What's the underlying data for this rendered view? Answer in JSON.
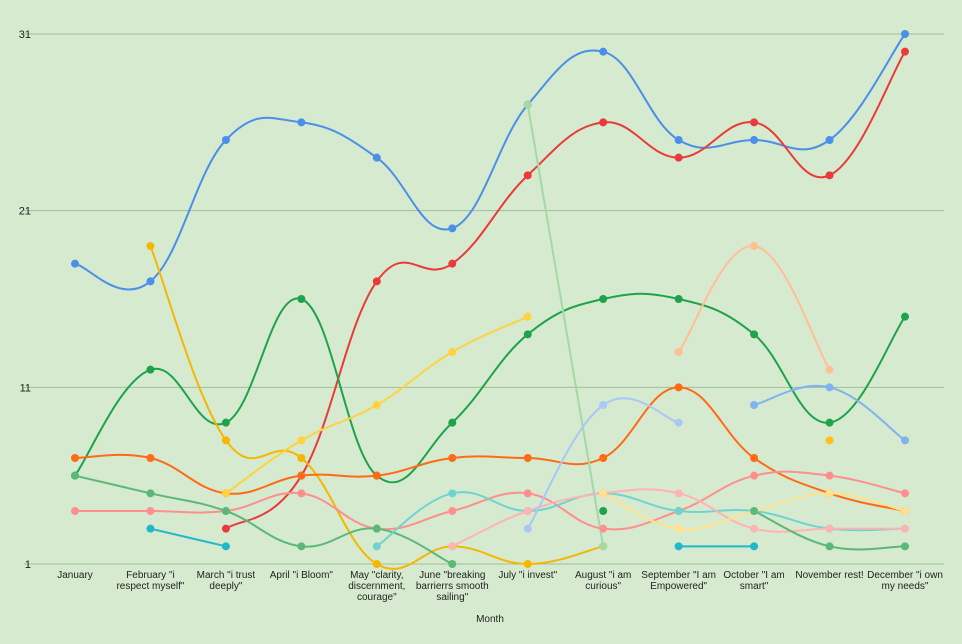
{
  "chart_data": {
    "type": "line",
    "title": "",
    "xlabel": "Month",
    "ylabel": "",
    "ylim": [
      1,
      31
    ],
    "yticks": [
      1,
      11,
      21,
      31
    ],
    "grid": true,
    "legend": "none",
    "categories": [
      "January",
      "February \"i respect myself\"",
      "March \"i trust deeply\"",
      "April \"i Bloom\"",
      "May \"clarity, discernment, courage\"",
      "June \"breaking barrierrs smooth sailing\"",
      "July \"i invest\"",
      "August \"i am curious\"",
      "September \"I am Empowered\"",
      "October \"I am smart\"",
      "November rest!",
      "December \"i own my needs\""
    ],
    "series": [
      {
        "color": "#4a8fe8",
        "values": [
          18,
          17,
          25,
          26,
          24,
          20,
          27,
          30,
          25,
          25,
          25,
          31
        ]
      },
      {
        "color": "#ea3a3a",
        "values": [
          null,
          null,
          3,
          6,
          17,
          18,
          23,
          26,
          24,
          26,
          23,
          30
        ]
      },
      {
        "color": "#1fa34a",
        "values": [
          6,
          12,
          9,
          16,
          6,
          9,
          14,
          16,
          16,
          14,
          9,
          15
        ]
      },
      {
        "color": "#f5b700",
        "values": [
          null,
          19,
          8,
          7,
          1,
          2,
          1,
          2,
          null,
          null,
          8,
          null
        ]
      },
      {
        "color": "#ff6a14",
        "values": [
          7,
          7,
          5,
          6,
          6,
          7,
          7,
          7,
          11,
          7,
          5,
          4
        ]
      },
      {
        "color": "#ffd23f",
        "values": [
          null,
          null,
          5,
          8,
          10,
          13,
          15,
          null,
          null,
          null,
          null,
          null
        ]
      },
      {
        "color": "#ff8f8f",
        "values": [
          4,
          4,
          4,
          5,
          3,
          4,
          5,
          3,
          4,
          6,
          6,
          5
        ]
      },
      {
        "color": "#5cb878",
        "values": [
          6,
          5,
          4,
          2,
          3,
          1,
          null,
          null,
          null,
          null,
          null,
          null
        ]
      },
      {
        "color": "#a3d9a5",
        "values": [
          null,
          null,
          null,
          null,
          null,
          null,
          27,
          2,
          null,
          null,
          null,
          null
        ]
      },
      {
        "color": "#6fd4d0",
        "values": [
          null,
          null,
          null,
          null,
          2,
          5,
          4,
          5,
          4,
          4,
          3,
          3
        ]
      },
      {
        "color": "#ffb3b3",
        "values": [
          null,
          null,
          null,
          null,
          null,
          2,
          4,
          5,
          5,
          3,
          3,
          3
        ]
      },
      {
        "color": "#a9c8f5",
        "values": [
          null,
          null,
          null,
          null,
          null,
          null,
          3,
          10,
          9,
          null,
          null,
          null
        ]
      },
      {
        "color": "#ffe28a",
        "values": [
          null,
          null,
          null,
          null,
          null,
          null,
          null,
          5,
          3,
          4,
          5,
          4
        ]
      },
      {
        "color": "#ffbf94",
        "values": [
          null,
          null,
          null,
          null,
          null,
          null,
          null,
          null,
          13,
          19,
          12,
          null
        ]
      },
      {
        "color": "#7fb3f0",
        "values": [
          null,
          null,
          null,
          null,
          null,
          null,
          null,
          null,
          null,
          10,
          11,
          8
        ]
      },
      {
        "color": "#5cb878",
        "values": [
          null,
          null,
          null,
          null,
          null,
          null,
          null,
          null,
          null,
          4,
          2,
          2
        ]
      },
      {
        "color": "#1fa34a",
        "values": [
          null,
          null,
          null,
          null,
          null,
          null,
          null,
          4,
          null,
          null,
          null,
          null
        ]
      },
      {
        "color": "#1fb8c8",
        "values": [
          null,
          3,
          2,
          null,
          null,
          null,
          null,
          null,
          2,
          2,
          null,
          null
        ]
      },
      {
        "color": "#ffc21a",
        "values": [
          null,
          null,
          null,
          null,
          null,
          null,
          null,
          null,
          null,
          null,
          8,
          null
        ]
      }
    ]
  }
}
